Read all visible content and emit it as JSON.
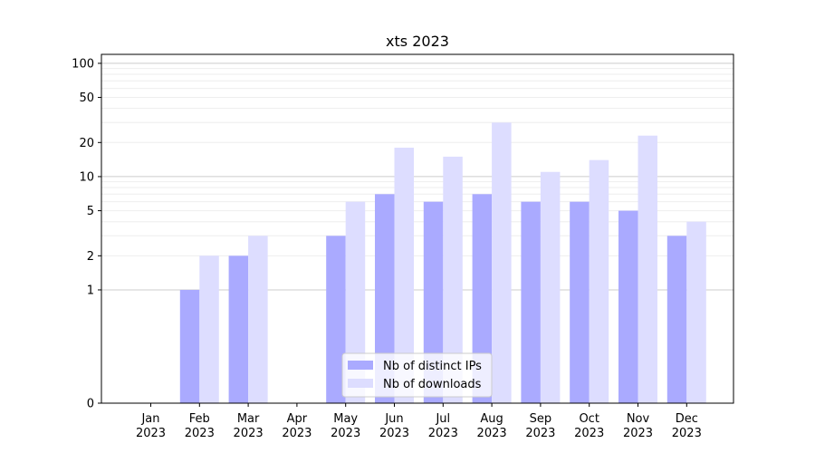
{
  "chart_data": {
    "type": "bar",
    "title": "xts 2023",
    "xlabel": "",
    "ylabel": "",
    "y_scale": "symlog",
    "ylim": [
      0,
      120
    ],
    "y_ticks": [
      0,
      1,
      2,
      5,
      10,
      20,
      50,
      100
    ],
    "grid": "horizontal",
    "legend_position": "lower center",
    "categories": [
      "Jan\n2023",
      "Feb\n2023",
      "Mar\n2023",
      "Apr\n2023",
      "May\n2023",
      "Jun\n2023",
      "Jul\n2023",
      "Aug\n2023",
      "Sep\n2023",
      "Oct\n2023",
      "Nov\n2023",
      "Dec\n2023"
    ],
    "series": [
      {
        "name": "Nb of distinct IPs",
        "color": "#aaaaff",
        "values": [
          0,
          1,
          2,
          0,
          3,
          7,
          6,
          7,
          6,
          6,
          5,
          3
        ]
      },
      {
        "name": "Nb of downloads",
        "color": "#ddddff",
        "values": [
          0,
          2,
          3,
          0,
          6,
          18,
          15,
          30,
          11,
          14,
          23,
          4
        ]
      }
    ]
  }
}
